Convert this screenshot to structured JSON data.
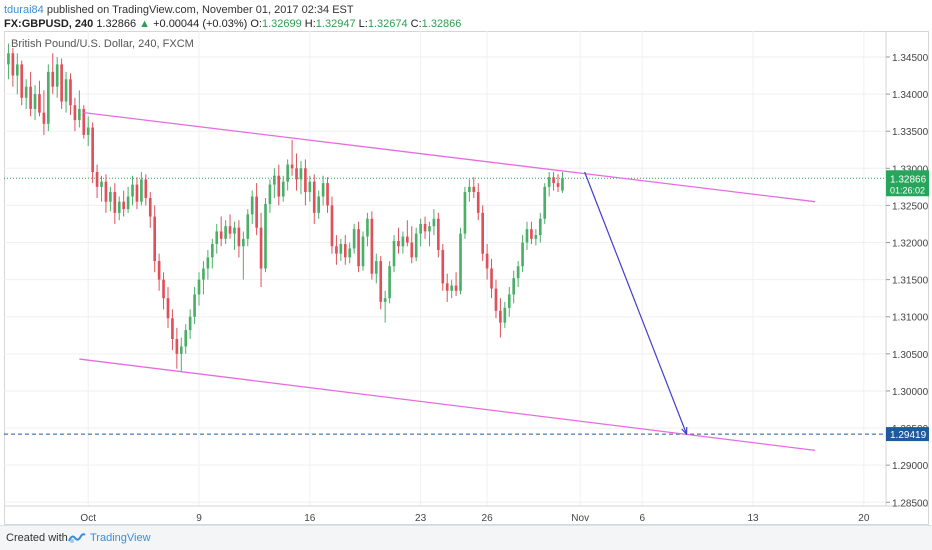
{
  "header": {
    "author": "tdurai84",
    "published_text": " published on TradingView.com, November 01, 2017 02:34 EST"
  },
  "ohlc": {
    "symbol": "FX:GBPUSD, 240",
    "last": "1.32866",
    "change": "+0.00044 (+0.03%)",
    "o_label": "O:",
    "o": "1.32699",
    "h_label": "H:",
    "h": "1.32947",
    "l_label": "L:",
    "l": "1.32674",
    "c_label": "C:",
    "c": "1.32866"
  },
  "footer": {
    "created_with": "Created with",
    "brand": "TradingView"
  },
  "colors": {
    "up": "#4caf68",
    "down": "#e0505a",
    "channel": "#e86ce0",
    "projection": "#3f3fd0",
    "target": "#1e5a9e",
    "last_price": "#26a65b"
  },
  "chart_data": {
    "type": "candlestick",
    "title": "British Pound/U.S. Dollar, 240, FXCM",
    "y_range": [
      1.2845,
      1.3485
    ],
    "y_ticks": [
      "1.34500",
      "1.34000",
      "1.33500",
      "1.33000",
      "1.32500",
      "1.32000",
      "1.31500",
      "1.31000",
      "1.30500",
      "1.30000",
      "1.29500",
      "1.29000",
      "1.28500"
    ],
    "x_ticks": [
      {
        "label": "Oct",
        "bar": 18
      },
      {
        "label": "9",
        "bar": 43
      },
      {
        "label": "16",
        "bar": 68
      },
      {
        "label": "23",
        "bar": 93
      },
      {
        "label": "26",
        "bar": 108
      },
      {
        "label": "Nov",
        "bar": 129
      },
      {
        "label": "6",
        "bar": 143
      },
      {
        "label": "13",
        "bar": 168
      },
      {
        "label": "20",
        "bar": 193
      }
    ],
    "x_bar_range": [
      -1,
      198
    ],
    "last_price_label": "1.32866",
    "countdown_label": "01:26:02",
    "target_price_label": "1.29419",
    "target_price": 1.29419,
    "last_price": 1.32866,
    "channel_upper": [
      [
        17,
        1.3375
      ],
      [
        182,
        1.3255
      ]
    ],
    "channel_lower": [
      [
        16,
        1.3043
      ],
      [
        182,
        1.292
      ]
    ],
    "projection": [
      [
        130,
        1.3295
      ],
      [
        153,
        1.2942
      ]
    ],
    "grid": true,
    "candles": [
      {
        "o": 1.344,
        "h": 1.3468,
        "l": 1.342,
        "c": 1.3455
      },
      {
        "o": 1.3455,
        "h": 1.3462,
        "l": 1.341,
        "c": 1.3425
      },
      {
        "o": 1.3425,
        "h": 1.3455,
        "l": 1.34,
        "c": 1.344
      },
      {
        "o": 1.344,
        "h": 1.3445,
        "l": 1.3385,
        "c": 1.3395
      },
      {
        "o": 1.3395,
        "h": 1.342,
        "l": 1.338,
        "c": 1.341
      },
      {
        "o": 1.341,
        "h": 1.343,
        "l": 1.337,
        "c": 1.338
      },
      {
        "o": 1.338,
        "h": 1.3412,
        "l": 1.3365,
        "c": 1.34
      },
      {
        "o": 1.34,
        "h": 1.3418,
        "l": 1.337,
        "c": 1.3375
      },
      {
        "o": 1.3375,
        "h": 1.3405,
        "l": 1.3345,
        "c": 1.336
      },
      {
        "o": 1.336,
        "h": 1.344,
        "l": 1.335,
        "c": 1.343
      },
      {
        "o": 1.343,
        "h": 1.3455,
        "l": 1.34,
        "c": 1.341
      },
      {
        "o": 1.341,
        "h": 1.345,
        "l": 1.3395,
        "c": 1.344
      },
      {
        "o": 1.344,
        "h": 1.3448,
        "l": 1.338,
        "c": 1.339
      },
      {
        "o": 1.339,
        "h": 1.343,
        "l": 1.3375,
        "c": 1.342
      },
      {
        "o": 1.342,
        "h": 1.3428,
        "l": 1.3372,
        "c": 1.3385
      },
      {
        "o": 1.3385,
        "h": 1.3395,
        "l": 1.335,
        "c": 1.3365
      },
      {
        "o": 1.3365,
        "h": 1.3405,
        "l": 1.3355,
        "c": 1.338
      },
      {
        "o": 1.338,
        "h": 1.3385,
        "l": 1.334,
        "c": 1.3345
      },
      {
        "o": 1.3345,
        "h": 1.337,
        "l": 1.333,
        "c": 1.3355
      },
      {
        "o": 1.3355,
        "h": 1.3362,
        "l": 1.328,
        "c": 1.3295
      },
      {
        "o": 1.3295,
        "h": 1.3305,
        "l": 1.326,
        "c": 1.3275
      },
      {
        "o": 1.3275,
        "h": 1.329,
        "l": 1.3255,
        "c": 1.3282
      },
      {
        "o": 1.3282,
        "h": 1.3292,
        "l": 1.324,
        "c": 1.3255
      },
      {
        "o": 1.3255,
        "h": 1.3275,
        "l": 1.3242,
        "c": 1.3268
      },
      {
        "o": 1.3268,
        "h": 1.328,
        "l": 1.3225,
        "c": 1.324
      },
      {
        "o": 1.324,
        "h": 1.3262,
        "l": 1.323,
        "c": 1.3255
      },
      {
        "o": 1.3255,
        "h": 1.327,
        "l": 1.3235,
        "c": 1.3245
      },
      {
        "o": 1.3245,
        "h": 1.3275,
        "l": 1.324,
        "c": 1.3262
      },
      {
        "o": 1.3262,
        "h": 1.329,
        "l": 1.325,
        "c": 1.3278
      },
      {
        "o": 1.3278,
        "h": 1.3288,
        "l": 1.3245,
        "c": 1.3255
      },
      {
        "o": 1.3255,
        "h": 1.3295,
        "l": 1.325,
        "c": 1.3285
      },
      {
        "o": 1.3285,
        "h": 1.3292,
        "l": 1.325,
        "c": 1.326
      },
      {
        "o": 1.326,
        "h": 1.3268,
        "l": 1.322,
        "c": 1.3235
      },
      {
        "o": 1.3235,
        "h": 1.325,
        "l": 1.316,
        "c": 1.3175
      },
      {
        "o": 1.3175,
        "h": 1.3185,
        "l": 1.3135,
        "c": 1.315
      },
      {
        "o": 1.315,
        "h": 1.316,
        "l": 1.311,
        "c": 1.3125
      },
      {
        "o": 1.3125,
        "h": 1.314,
        "l": 1.3085,
        "c": 1.3098
      },
      {
        "o": 1.3098,
        "h": 1.311,
        "l": 1.3055,
        "c": 1.307
      },
      {
        "o": 1.307,
        "h": 1.3085,
        "l": 1.303,
        "c": 1.305
      },
      {
        "o": 1.305,
        "h": 1.3072,
        "l": 1.3025,
        "c": 1.306
      },
      {
        "o": 1.306,
        "h": 1.309,
        "l": 1.305,
        "c": 1.3082
      },
      {
        "o": 1.3082,
        "h": 1.311,
        "l": 1.307,
        "c": 1.31
      },
      {
        "o": 1.31,
        "h": 1.314,
        "l": 1.309,
        "c": 1.313
      },
      {
        "o": 1.313,
        "h": 1.316,
        "l": 1.3115,
        "c": 1.315
      },
      {
        "o": 1.315,
        "h": 1.3175,
        "l": 1.313,
        "c": 1.3165
      },
      {
        "o": 1.3165,
        "h": 1.319,
        "l": 1.315,
        "c": 1.318
      },
      {
        "o": 1.318,
        "h": 1.3205,
        "l": 1.3165,
        "c": 1.3198
      },
      {
        "o": 1.3198,
        "h": 1.3225,
        "l": 1.3185,
        "c": 1.3215
      },
      {
        "o": 1.3215,
        "h": 1.3235,
        "l": 1.3195,
        "c": 1.3205
      },
      {
        "o": 1.3205,
        "h": 1.323,
        "l": 1.3198,
        "c": 1.3222
      },
      {
        "o": 1.3222,
        "h": 1.3238,
        "l": 1.3205,
        "c": 1.3212
      },
      {
        "o": 1.3212,
        "h": 1.3228,
        "l": 1.319,
        "c": 1.322
      },
      {
        "o": 1.322,
        "h": 1.323,
        "l": 1.318,
        "c": 1.3195
      },
      {
        "o": 1.3195,
        "h": 1.3215,
        "l": 1.315,
        "c": 1.3205
      },
      {
        "o": 1.3205,
        "h": 1.3245,
        "l": 1.3195,
        "c": 1.3238
      },
      {
        "o": 1.3238,
        "h": 1.327,
        "l": 1.3225,
        "c": 1.3262
      },
      {
        "o": 1.3262,
        "h": 1.328,
        "l": 1.321,
        "c": 1.322
      },
      {
        "o": 1.322,
        "h": 1.324,
        "l": 1.314,
        "c": 1.3165
      },
      {
        "o": 1.3165,
        "h": 1.326,
        "l": 1.316,
        "c": 1.3252
      },
      {
        "o": 1.3252,
        "h": 1.3285,
        "l": 1.324,
        "c": 1.3278
      },
      {
        "o": 1.3278,
        "h": 1.33,
        "l": 1.326,
        "c": 1.329
      },
      {
        "o": 1.329,
        "h": 1.3305,
        "l": 1.325,
        "c": 1.3262
      },
      {
        "o": 1.3262,
        "h": 1.329,
        "l": 1.3255,
        "c": 1.3282
      },
      {
        "o": 1.3282,
        "h": 1.3312,
        "l": 1.327,
        "c": 1.3305
      },
      {
        "o": 1.3305,
        "h": 1.3338,
        "l": 1.329,
        "c": 1.33
      },
      {
        "o": 1.33,
        "h": 1.332,
        "l": 1.327,
        "c": 1.3285
      },
      {
        "o": 1.3285,
        "h": 1.331,
        "l": 1.3265,
        "c": 1.33
      },
      {
        "o": 1.33,
        "h": 1.3312,
        "l": 1.325,
        "c": 1.3268
      },
      {
        "o": 1.3268,
        "h": 1.329,
        "l": 1.3255,
        "c": 1.3282
      },
      {
        "o": 1.3282,
        "h": 1.3292,
        "l": 1.3225,
        "c": 1.324
      },
      {
        "o": 1.324,
        "h": 1.327,
        "l": 1.3232,
        "c": 1.3262
      },
      {
        "o": 1.3262,
        "h": 1.329,
        "l": 1.325,
        "c": 1.328
      },
      {
        "o": 1.328,
        "h": 1.3288,
        "l": 1.324,
        "c": 1.325
      },
      {
        "o": 1.325,
        "h": 1.3262,
        "l": 1.3185,
        "c": 1.3195
      },
      {
        "o": 1.3195,
        "h": 1.321,
        "l": 1.317,
        "c": 1.3185
      },
      {
        "o": 1.3185,
        "h": 1.3205,
        "l": 1.3175,
        "c": 1.3198
      },
      {
        "o": 1.3198,
        "h": 1.321,
        "l": 1.317,
        "c": 1.318
      },
      {
        "o": 1.318,
        "h": 1.32,
        "l": 1.3172,
        "c": 1.3192
      },
      {
        "o": 1.3192,
        "h": 1.3225,
        "l": 1.3185,
        "c": 1.3218
      },
      {
        "o": 1.3218,
        "h": 1.3228,
        "l": 1.316,
        "c": 1.3168
      },
      {
        "o": 1.3168,
        "h": 1.3215,
        "l": 1.3162,
        "c": 1.3208
      },
      {
        "o": 1.3208,
        "h": 1.324,
        "l": 1.3195,
        "c": 1.3232
      },
      {
        "o": 1.3232,
        "h": 1.3242,
        "l": 1.315,
        "c": 1.3158
      },
      {
        "o": 1.3158,
        "h": 1.3185,
        "l": 1.3145,
        "c": 1.3175
      },
      {
        "o": 1.3175,
        "h": 1.3182,
        "l": 1.311,
        "c": 1.312
      },
      {
        "o": 1.312,
        "h": 1.3135,
        "l": 1.3092,
        "c": 1.3125
      },
      {
        "o": 1.3125,
        "h": 1.3175,
        "l": 1.3118,
        "c": 1.3168
      },
      {
        "o": 1.3168,
        "h": 1.321,
        "l": 1.316,
        "c": 1.3202
      },
      {
        "o": 1.3202,
        "h": 1.322,
        "l": 1.3185,
        "c": 1.3195
      },
      {
        "o": 1.3195,
        "h": 1.3215,
        "l": 1.3185,
        "c": 1.3208
      },
      {
        "o": 1.3208,
        "h": 1.323,
        "l": 1.3195,
        "c": 1.32
      },
      {
        "o": 1.32,
        "h": 1.3222,
        "l": 1.3172,
        "c": 1.318
      },
      {
        "o": 1.318,
        "h": 1.322,
        "l": 1.3175,
        "c": 1.3212
      },
      {
        "o": 1.3212,
        "h": 1.3232,
        "l": 1.3195,
        "c": 1.3225
      },
      {
        "o": 1.3225,
        "h": 1.3235,
        "l": 1.3205,
        "c": 1.3215
      },
      {
        "o": 1.3215,
        "h": 1.3228,
        "l": 1.3195,
        "c": 1.3222
      },
      {
        "o": 1.3222,
        "h": 1.3245,
        "l": 1.321,
        "c": 1.3232
      },
      {
        "o": 1.3232,
        "h": 1.324,
        "l": 1.318,
        "c": 1.319
      },
      {
        "o": 1.319,
        "h": 1.3198,
        "l": 1.3135,
        "c": 1.3145
      },
      {
        "o": 1.3145,
        "h": 1.3158,
        "l": 1.312,
        "c": 1.3135
      },
      {
        "o": 1.3135,
        "h": 1.315,
        "l": 1.3125,
        "c": 1.3142
      },
      {
        "o": 1.3142,
        "h": 1.316,
        "l": 1.3128,
        "c": 1.3135
      },
      {
        "o": 1.3135,
        "h": 1.322,
        "l": 1.313,
        "c": 1.3212
      },
      {
        "o": 1.3212,
        "h": 1.3275,
        "l": 1.3205,
        "c": 1.3268
      },
      {
        "o": 1.3268,
        "h": 1.3285,
        "l": 1.3255,
        "c": 1.3275
      },
      {
        "o": 1.3275,
        "h": 1.3288,
        "l": 1.326,
        "c": 1.3268
      },
      {
        "o": 1.3268,
        "h": 1.328,
        "l": 1.323,
        "c": 1.324
      },
      {
        "o": 1.324,
        "h": 1.325,
        "l": 1.3175,
        "c": 1.3185
      },
      {
        "o": 1.3185,
        "h": 1.3198,
        "l": 1.315,
        "c": 1.3165
      },
      {
        "o": 1.3165,
        "h": 1.3178,
        "l": 1.3125,
        "c": 1.3138
      },
      {
        "o": 1.3138,
        "h": 1.315,
        "l": 1.3098,
        "c": 1.3108
      },
      {
        "o": 1.3108,
        "h": 1.3125,
        "l": 1.3072,
        "c": 1.3092
      },
      {
        "o": 1.3092,
        "h": 1.312,
        "l": 1.3085,
        "c": 1.3112
      },
      {
        "o": 1.3112,
        "h": 1.314,
        "l": 1.31,
        "c": 1.313
      },
      {
        "o": 1.313,
        "h": 1.3162,
        "l": 1.3118,
        "c": 1.3152
      },
      {
        "o": 1.3152,
        "h": 1.3175,
        "l": 1.314,
        "c": 1.3168
      },
      {
        "o": 1.3168,
        "h": 1.321,
        "l": 1.316,
        "c": 1.32
      },
      {
        "o": 1.32,
        "h": 1.3228,
        "l": 1.319,
        "c": 1.3218
      },
      {
        "o": 1.3218,
        "h": 1.3228,
        "l": 1.3198,
        "c": 1.3205
      },
      {
        "o": 1.3205,
        "h": 1.3218,
        "l": 1.3196,
        "c": 1.321
      },
      {
        "o": 1.321,
        "h": 1.324,
        "l": 1.32,
        "c": 1.3232
      },
      {
        "o": 1.3232,
        "h": 1.328,
        "l": 1.3225,
        "c": 1.3275
      },
      {
        "o": 1.3275,
        "h": 1.3295,
        "l": 1.3262,
        "c": 1.3288
      },
      {
        "o": 1.3288,
        "h": 1.3295,
        "l": 1.327,
        "c": 1.328
      },
      {
        "o": 1.328,
        "h": 1.3292,
        "l": 1.3268,
        "c": 1.3275
      },
      {
        "o": 1.327,
        "h": 1.3295,
        "l": 1.3267,
        "c": 1.3287
      }
    ]
  }
}
